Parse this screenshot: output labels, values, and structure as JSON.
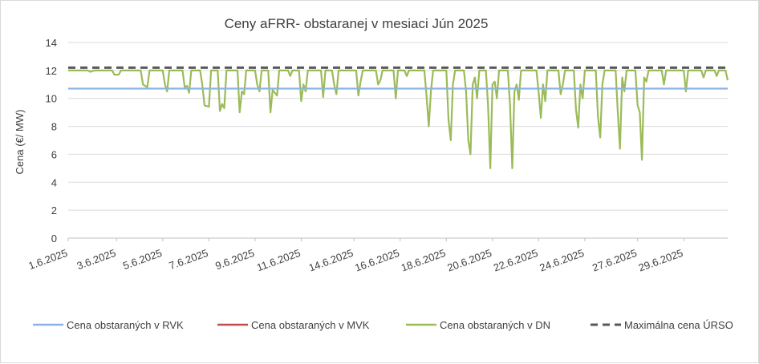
{
  "chart_data": {
    "type": "line",
    "title": "Ceny aFRR- obstaranej v mesiaci Jún 2025",
    "xlabel": "",
    "ylabel": "Cena (€/ MW)",
    "ylim": [
      0,
      14
    ],
    "yticks": [
      0,
      2,
      4,
      6,
      8,
      10,
      12,
      14
    ],
    "xlim": [
      1,
      31
    ],
    "x_tick_labels": [
      "1.6.2025",
      "3.6.2025",
      "5.6.2025",
      "7.6.2025",
      "9.6.2025",
      "11.6.2025",
      "14.6.2025",
      "16.6.2025",
      "18.6.2025",
      "20.6.2025",
      "22.6.2025",
      "24.6.2025",
      "27.6.2025",
      "29.6.2025"
    ],
    "x_tick_days": [
      1,
      3.2,
      5.3,
      7.4,
      9.5,
      11.6,
      14,
      16.1,
      18.2,
      20.3,
      22.4,
      24.5,
      26.9,
      29
    ],
    "grid": "horizontal",
    "legend_position": "bottom",
    "series": [
      {
        "name": "Cena obstaraných v RVK",
        "color": "#8db3e2",
        "style": "solid",
        "points": [
          [
            1,
            10.7
          ],
          [
            31,
            10.7
          ]
        ]
      },
      {
        "name": "Cena obstaraných v MVK",
        "color": "#c0504d",
        "style": "solid",
        "points": []
      },
      {
        "name": "Cena obstaraných v DN",
        "color": "#9bbb59",
        "style": "solid",
        "points": [
          [
            1.0,
            12.0
          ],
          [
            1.9,
            12.0
          ],
          [
            2.0,
            11.9
          ],
          [
            2.2,
            12.0
          ],
          [
            3.0,
            12.0
          ],
          [
            3.1,
            11.7
          ],
          [
            3.3,
            11.7
          ],
          [
            3.4,
            12.0
          ],
          [
            4.3,
            12.0
          ],
          [
            4.4,
            11.0
          ],
          [
            4.6,
            10.8
          ],
          [
            4.7,
            12.0
          ],
          [
            5.3,
            12.0
          ],
          [
            5.4,
            11.0
          ],
          [
            5.5,
            10.5
          ],
          [
            5.6,
            12.0
          ],
          [
            6.2,
            12.0
          ],
          [
            6.3,
            10.8
          ],
          [
            6.4,
            10.9
          ],
          [
            6.5,
            10.4
          ],
          [
            6.6,
            12.0
          ],
          [
            7.0,
            12.0
          ],
          [
            7.1,
            11.0
          ],
          [
            7.2,
            9.5
          ],
          [
            7.4,
            9.4
          ],
          [
            7.5,
            12.0
          ],
          [
            7.8,
            12.0
          ],
          [
            7.9,
            9.1
          ],
          [
            8.0,
            9.6
          ],
          [
            8.1,
            9.3
          ],
          [
            8.2,
            12.0
          ],
          [
            8.7,
            12.0
          ],
          [
            8.8,
            9.0
          ],
          [
            8.9,
            10.5
          ],
          [
            9.0,
            10.3
          ],
          [
            9.1,
            12.0
          ],
          [
            9.5,
            12.0
          ],
          [
            9.6,
            11.0
          ],
          [
            9.7,
            10.5
          ],
          [
            9.8,
            12.0
          ],
          [
            10.1,
            12.0
          ],
          [
            10.2,
            9.0
          ],
          [
            10.3,
            10.6
          ],
          [
            10.5,
            10.2
          ],
          [
            10.6,
            12.0
          ],
          [
            11.0,
            12.0
          ],
          [
            11.1,
            11.6
          ],
          [
            11.2,
            12.0
          ],
          [
            11.5,
            12.0
          ],
          [
            11.6,
            9.8
          ],
          [
            11.7,
            11.0
          ],
          [
            11.8,
            10.5
          ],
          [
            11.9,
            12.0
          ],
          [
            12.5,
            12.0
          ],
          [
            12.6,
            10.1
          ],
          [
            12.7,
            12.0
          ],
          [
            13.0,
            12.0
          ],
          [
            13.1,
            11.0
          ],
          [
            13.2,
            10.3
          ],
          [
            13.3,
            12.0
          ],
          [
            14.1,
            12.0
          ],
          [
            14.2,
            10.2
          ],
          [
            14.3,
            11.2
          ],
          [
            14.4,
            12.0
          ],
          [
            15.0,
            12.0
          ],
          [
            15.1,
            11.0
          ],
          [
            15.2,
            11.3
          ],
          [
            15.3,
            12.0
          ],
          [
            15.8,
            12.0
          ],
          [
            15.9,
            10.0
          ],
          [
            16.0,
            12.0
          ],
          [
            16.3,
            12.0
          ],
          [
            16.4,
            11.6
          ],
          [
            16.5,
            12.0
          ],
          [
            17.2,
            12.0
          ],
          [
            17.3,
            10.2
          ],
          [
            17.4,
            8.0
          ],
          [
            17.5,
            10.5
          ],
          [
            17.6,
            12.0
          ],
          [
            18.2,
            12.0
          ],
          [
            18.3,
            8.5
          ],
          [
            18.4,
            7.0
          ],
          [
            18.5,
            11.0
          ],
          [
            18.6,
            12.0
          ],
          [
            19.0,
            12.0
          ],
          [
            19.1,
            10.5
          ],
          [
            19.2,
            7.0
          ],
          [
            19.3,
            6.0
          ],
          [
            19.4,
            11.0
          ],
          [
            19.5,
            11.5
          ],
          [
            19.6,
            10.0
          ],
          [
            19.7,
            12.0
          ],
          [
            20.0,
            12.0
          ],
          [
            20.1,
            9.5
          ],
          [
            20.2,
            5.0
          ],
          [
            20.3,
            11.0
          ],
          [
            20.4,
            11.2
          ],
          [
            20.5,
            10.0
          ],
          [
            20.6,
            12.0
          ],
          [
            21.0,
            12.0
          ],
          [
            21.1,
            9.5
          ],
          [
            21.2,
            5.0
          ],
          [
            21.3,
            10.5
          ],
          [
            21.4,
            11.0
          ],
          [
            21.5,
            9.9
          ],
          [
            21.6,
            12.0
          ],
          [
            22.3,
            12.0
          ],
          [
            22.4,
            10.4
          ],
          [
            22.5,
            8.6
          ],
          [
            22.6,
            11.0
          ],
          [
            22.7,
            9.8
          ],
          [
            22.8,
            12.0
          ],
          [
            23.3,
            12.0
          ],
          [
            23.4,
            10.3
          ],
          [
            23.5,
            11.0
          ],
          [
            23.6,
            12.0
          ],
          [
            24.0,
            12.0
          ],
          [
            24.1,
            9.2
          ],
          [
            24.2,
            7.9
          ],
          [
            24.3,
            11.0
          ],
          [
            24.4,
            10.0
          ],
          [
            24.5,
            12.0
          ],
          [
            25.0,
            12.0
          ],
          [
            25.1,
            8.7
          ],
          [
            25.2,
            7.2
          ],
          [
            25.3,
            11.0
          ],
          [
            25.4,
            12.0
          ],
          [
            25.9,
            12.0
          ],
          [
            26.0,
            9.0
          ],
          [
            26.1,
            6.4
          ],
          [
            26.2,
            11.5
          ],
          [
            26.3,
            10.5
          ],
          [
            26.4,
            12.0
          ],
          [
            26.8,
            12.0
          ],
          [
            26.9,
            9.5
          ],
          [
            27.0,
            9.0
          ],
          [
            27.1,
            5.6
          ],
          [
            27.2,
            11.5
          ],
          [
            27.3,
            11.2
          ],
          [
            27.4,
            12.0
          ],
          [
            28.0,
            12.0
          ],
          [
            28.1,
            11.0
          ],
          [
            28.2,
            12.0
          ],
          [
            29.0,
            12.0
          ],
          [
            29.1,
            10.5
          ],
          [
            29.2,
            12.0
          ],
          [
            29.8,
            12.0
          ],
          [
            29.9,
            11.5
          ],
          [
            30.0,
            12.0
          ],
          [
            30.4,
            12.0
          ],
          [
            30.5,
            11.6
          ],
          [
            30.6,
            12.0
          ],
          [
            30.9,
            12.0
          ],
          [
            31.0,
            11.3
          ]
        ]
      },
      {
        "name": "Maximálna cena ÚRSO",
        "color": "#595959",
        "style": "dashed",
        "points": [
          [
            1,
            12.2
          ],
          [
            31,
            12.2
          ]
        ]
      }
    ]
  }
}
